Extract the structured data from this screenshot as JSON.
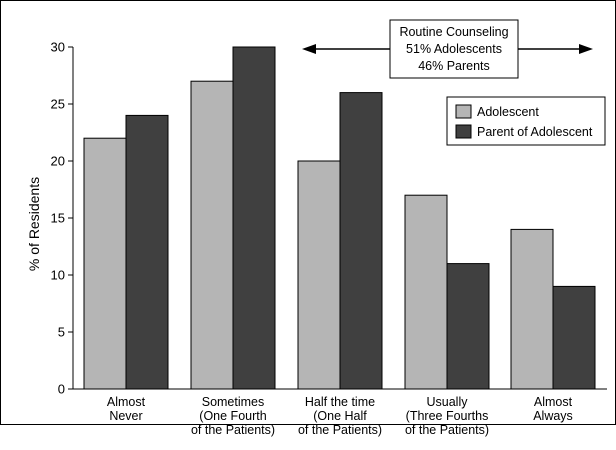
{
  "chart_data": {
    "type": "bar",
    "ylabel": "% of Residents",
    "xlabel": "",
    "ylim": [
      0,
      30
    ],
    "yticks": [
      0,
      5,
      10,
      15,
      20,
      25,
      30
    ],
    "grid": false,
    "legend_position": "top-right",
    "categories": [
      [
        "Almost",
        "Never"
      ],
      [
        "Sometimes",
        "(One Fourth",
        "of the Patients)"
      ],
      [
        "Half the time",
        "(One Half",
        "of the Patients)"
      ],
      [
        "Usually",
        "(Three Fourths",
        "of the Patients)"
      ],
      [
        "Almost",
        "Always"
      ]
    ],
    "series": [
      {
        "name": "Adolescent",
        "color": "#b5b5b5",
        "values": [
          22,
          27,
          20,
          17,
          14
        ]
      },
      {
        "name": "Parent of Adolescent",
        "color": "#404040",
        "values": [
          24,
          30,
          26,
          11,
          9
        ]
      }
    ],
    "annotation": {
      "lines": [
        "Routine Counseling",
        "51% Adolescents",
        "46% Parents"
      ]
    }
  }
}
